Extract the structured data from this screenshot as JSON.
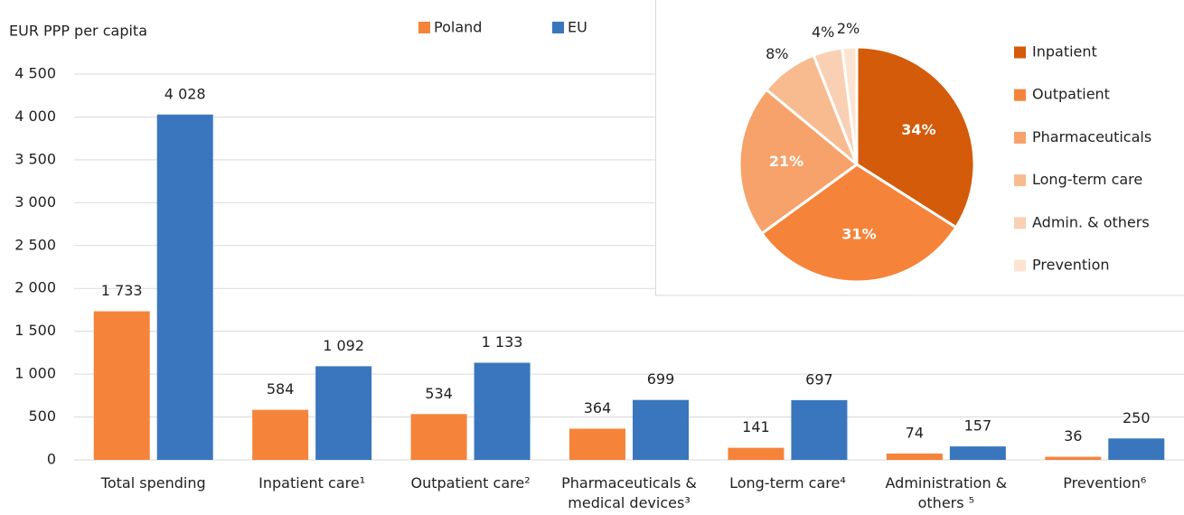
{
  "chart_data": [
    {
      "type": "bar",
      "y_label": "EUR PPP per capita",
      "categories": [
        "Total spending",
        "Inpatient care¹",
        "Outpatient care²",
        "Pharmaceuticals & medical devices³",
        "Long-term care⁴",
        "Administration & others ⁵",
        "Prevention⁶"
      ],
      "series": [
        {
          "name": "Poland",
          "color": "#f5843a",
          "values": [
            1733,
            584,
            534,
            364,
            141,
            74,
            36
          ],
          "value_labels": [
            "1 733",
            "584",
            "534",
            "364",
            "141",
            "74",
            "36"
          ]
        },
        {
          "name": "EU",
          "color": "#3a76bd",
          "values": [
            4028,
            1092,
            1133,
            699,
            697,
            157,
            250
          ],
          "value_labels": [
            "4 028",
            "1 092",
            "1 133",
            "699",
            "697",
            "157",
            "250"
          ]
        }
      ],
      "ylim": [
        0,
        4500
      ],
      "yticks": [
        0,
        500,
        {
          "value": 1000,
          "label": "1 000"
        },
        {
          "value": 1500,
          "label": "1 500"
        },
        {
          "value": 2000,
          "label": "2 000"
        },
        {
          "value": 2500,
          "label": "2 500"
        },
        {
          "value": 3000,
          "label": "3 000"
        },
        {
          "value": 3500,
          "label": "3 500"
        },
        {
          "value": 4000,
          "label": "4 000"
        },
        {
          "value": 4500,
          "label": "4 500"
        }
      ],
      "grid": true
    },
    {
      "type": "pie",
      "categories": [
        "Inpatient",
        "Outpatient",
        "Pharmaceuticals",
        "Long-term care",
        "Admin. & others",
        "Prevention"
      ],
      "values": [
        34,
        31,
        21,
        8,
        4,
        2
      ],
      "value_labels": [
        "34%",
        "31%",
        "21%",
        "8%",
        "4%",
        "2%"
      ],
      "colors": [
        "#d45b0a",
        "#f5843a",
        "#f6a26a",
        "#f8bb90",
        "#fad0b4",
        "#fde3d2"
      ]
    }
  ]
}
